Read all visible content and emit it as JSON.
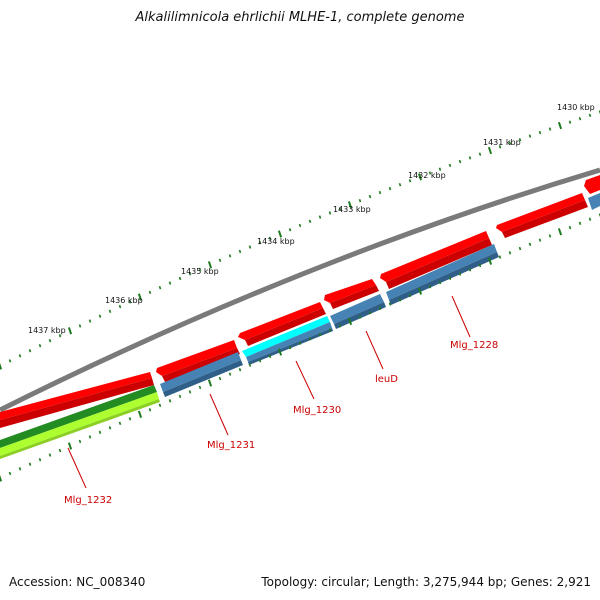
{
  "title": "Alkalilimnicola ehrlichii MLHE-1, complete genome",
  "footer": {
    "accession": "Accession: NC_008340",
    "summary": "Topology: circular; Length: 3,275,944 bp; Genes: 2,921"
  },
  "scale_labels": [
    "1430 kbp",
    "1431 kbp",
    "1432 kbp",
    "1433 kbp",
    "1434 kbp",
    "1435 kbp",
    "1436 kbp",
    "1437 kbp"
  ],
  "gene_labels": [
    "Mlg_1228",
    "leuD",
    "Mlg_1230",
    "Mlg_1231",
    "Mlg_1232"
  ],
  "colors": {
    "backbone": "#7a7a7a",
    "forward_cds": "#ff0000",
    "reverse_cds": "#4682b4",
    "highlight": "#00ffff",
    "dark_green": "#228b22",
    "light_green": "#adff2f",
    "tick": "#1e7a1e",
    "label": "#cc0000"
  }
}
